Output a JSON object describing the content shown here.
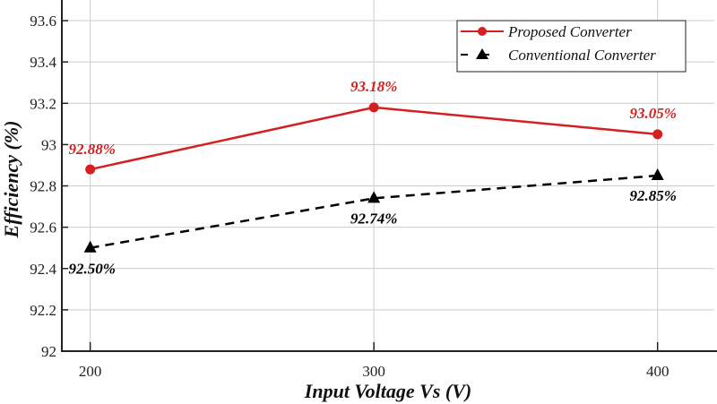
{
  "chart_data": {
    "type": "line",
    "xlabel": "Input Voltage Vs (V)",
    "ylabel": "Efficiency (%)",
    "x": [
      200,
      300,
      400
    ],
    "xticks": [
      "200",
      "300",
      "400"
    ],
    "yticks": [
      "92",
      "92.2",
      "92.4",
      "92.6",
      "92.8",
      "93",
      "93.2",
      "93.4",
      "93.6"
    ],
    "xlim": [
      190,
      420
    ],
    "ylim": [
      92,
      93.7
    ],
    "grid": true,
    "legend_position": "top-right",
    "series": [
      {
        "name": "Proposed Converter",
        "values": [
          92.88,
          93.18,
          93.05
        ],
        "labels": [
          "92.88%",
          "93.18%",
          "93.05%"
        ],
        "color": "#d42020",
        "marker": "circle",
        "line": "solid"
      },
      {
        "name": "Conventional Converter",
        "values": [
          92.5,
          92.74,
          92.85
        ],
        "labels": [
          "92.50%",
          "92.74%",
          "92.85%"
        ],
        "color": "#000000",
        "marker": "triangle",
        "line": "dashed"
      }
    ]
  }
}
